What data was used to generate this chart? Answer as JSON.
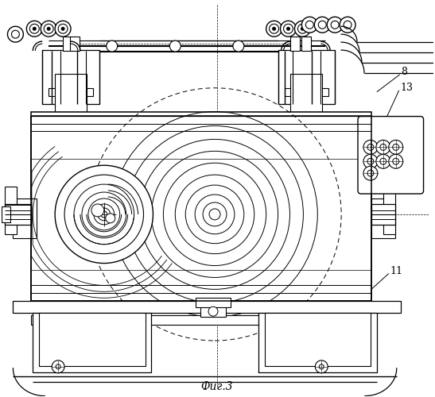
{
  "title": "Фиг.3",
  "background_color": "#ffffff",
  "line_color": "#000000",
  "label_8": "8",
  "label_13": "13",
  "label_11": "11",
  "figsize": [
    5.47,
    5.0
  ],
  "dpi": 100
}
